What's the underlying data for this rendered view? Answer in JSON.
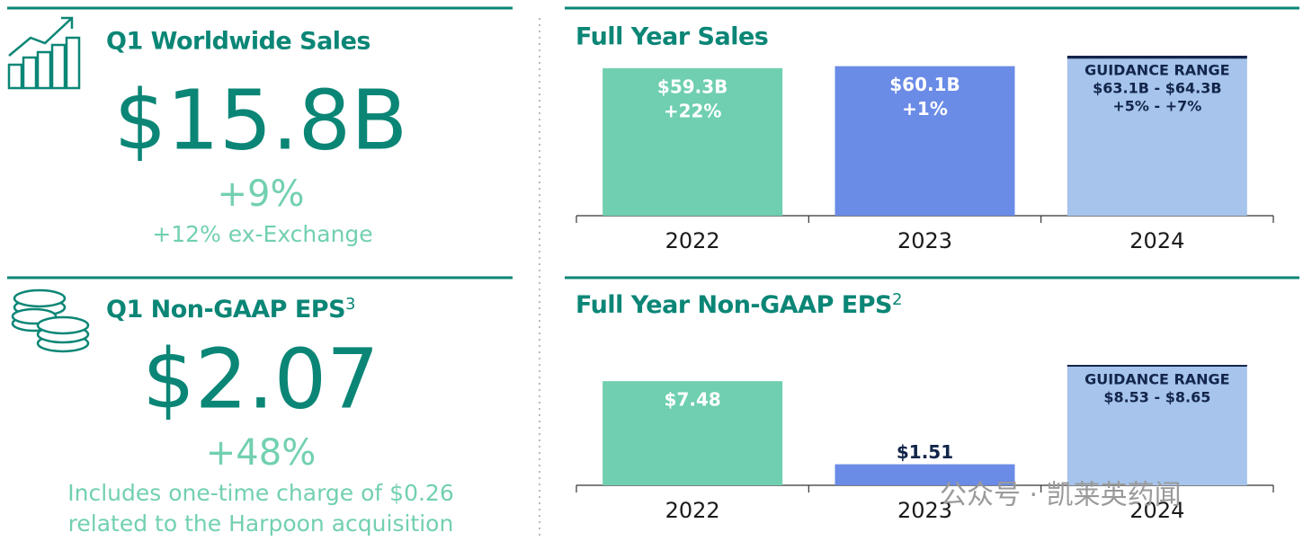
{
  "kpis": [
    {
      "title": "Q1 Worldwide Sales",
      "value": "$15.8B",
      "change": "+9%",
      "note_lines": [
        "+12% ex-Exchange"
      ]
    },
    {
      "title": "Q1 Non-GAAP EPS",
      "title_note": "3",
      "value": "$2.07",
      "change": "+48%",
      "note_lines": [
        "Includes one-time charge of $0.26",
        "related to the Harpoon acquisition"
      ]
    }
  ],
  "chart_data": [
    {
      "type": "bar",
      "title": "Full Year Sales",
      "categories": [
        "2022",
        "2023",
        "2024"
      ],
      "values": [
        59.3,
        60.1,
        null
      ],
      "value_labels": [
        "$59.3B",
        "$60.1B",
        null
      ],
      "growth_labels": [
        "+22%",
        "+1%",
        null
      ],
      "range_low": [
        null,
        null,
        63.1
      ],
      "range_high": [
        null,
        null,
        64.3
      ],
      "range_heading": "GUIDANCE RANGE",
      "range_labels": [
        null,
        null,
        "$63.1B - $64.3B"
      ],
      "range_growth_labels": [
        null,
        null,
        "+5% - +7%"
      ],
      "colors": [
        "#6fcfb0",
        "#6a8be6",
        "#a6c4ec"
      ],
      "range_cap_color": "#13254a"
    },
    {
      "type": "bar",
      "title": "Full Year Non-GAAP EPS",
      "title_note": "2",
      "categories": [
        "2022",
        "2023",
        "2024"
      ],
      "values": [
        7.48,
        1.51,
        null
      ],
      "value_labels": [
        "$7.48",
        "$1.51",
        null
      ],
      "range_low": [
        null,
        null,
        8.53
      ],
      "range_high": [
        null,
        null,
        8.65
      ],
      "range_heading": "GUIDANCE RANGE",
      "range_labels": [
        null,
        null,
        "$8.53 - $8.65"
      ],
      "colors": [
        "#6fcfb0",
        "#6a8be6",
        "#a6c4ec"
      ],
      "range_cap_color": "#13254a"
    }
  ],
  "watermark": "公众号 · 凯莱英药闻"
}
